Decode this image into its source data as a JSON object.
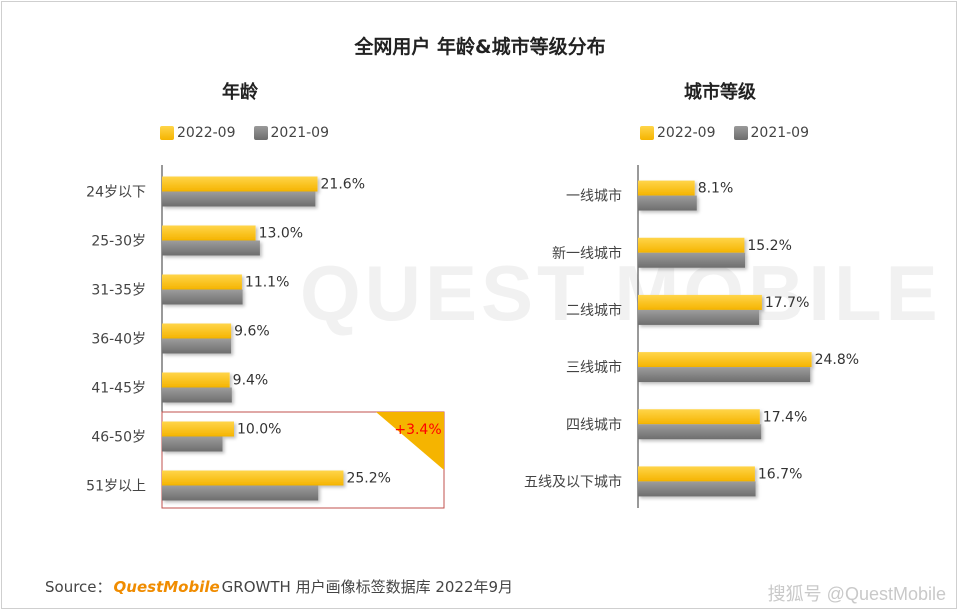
{
  "title": "全网用户 年龄&城市等级分布",
  "watermark": "QUEST MOBILE",
  "colors": {
    "y2022": "#f5b400",
    "y2021": "#7a7a7a",
    "highlight": "#cc0000",
    "accent": "#ff0000"
  },
  "chart_data": [
    {
      "type": "bar",
      "title": "年龄",
      "orientation": "horizontal",
      "categories": [
        "24岁以下",
        "25-30岁",
        "31-35岁",
        "36-40岁",
        "41-45岁",
        "46-50岁",
        "51岁以上"
      ],
      "series": [
        {
          "name": "2022-09",
          "values": [
            21.6,
            13.0,
            11.1,
            9.6,
            9.4,
            10.0,
            25.2
          ]
        },
        {
          "name": "2021-09",
          "values": [
            21.3,
            13.6,
            11.2,
            9.6,
            9.7,
            8.4,
            21.7
          ]
        }
      ],
      "data_labels": [
        "21.6%",
        "13.0%",
        "11.1%",
        "9.6%",
        "9.4%",
        "10.0%",
        "25.2%"
      ],
      "annotation": "+3.4%",
      "legend": "top"
    },
    {
      "type": "bar",
      "title": "城市等级",
      "orientation": "horizontal",
      "categories": [
        "一线城市",
        "新一线城市",
        "二线城市",
        "三线城市",
        "四线城市",
        "五线及以下城市"
      ],
      "series": [
        {
          "name": "2022-09",
          "values": [
            8.1,
            15.2,
            17.7,
            24.8,
            17.4,
            16.7
          ]
        },
        {
          "name": "2021-09",
          "values": [
            8.4,
            15.3,
            17.3,
            24.6,
            17.6,
            16.8
          ]
        }
      ],
      "data_labels": [
        "8.1%",
        "15.2%",
        "17.7%",
        "24.8%",
        "17.4%",
        "16.7%"
      ],
      "legend": "top"
    }
  ],
  "source": {
    "prefix": "Source：",
    "brand": "QuestMobile",
    "suffix": "GROWTH 用户画像标签数据库 2022年9月"
  },
  "credit": "搜狐号 @QuestMobile"
}
